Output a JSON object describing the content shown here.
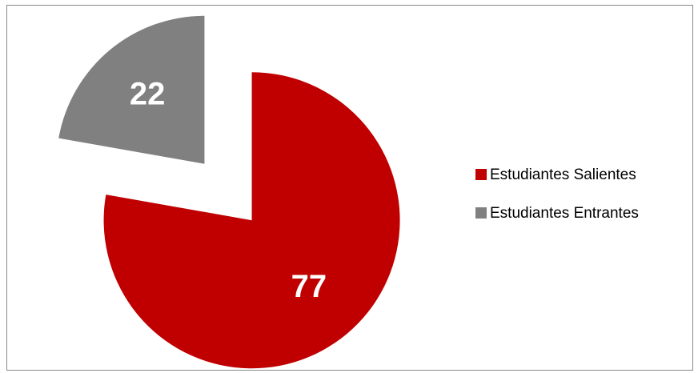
{
  "chart_data": {
    "type": "pie",
    "categories": [
      "Estudiantes Salientes",
      "Estudiantes Entrantes"
    ],
    "values": [
      77,
      22
    ],
    "colors": [
      "#c00000",
      "#808080"
    ],
    "legend": "right"
  }
}
